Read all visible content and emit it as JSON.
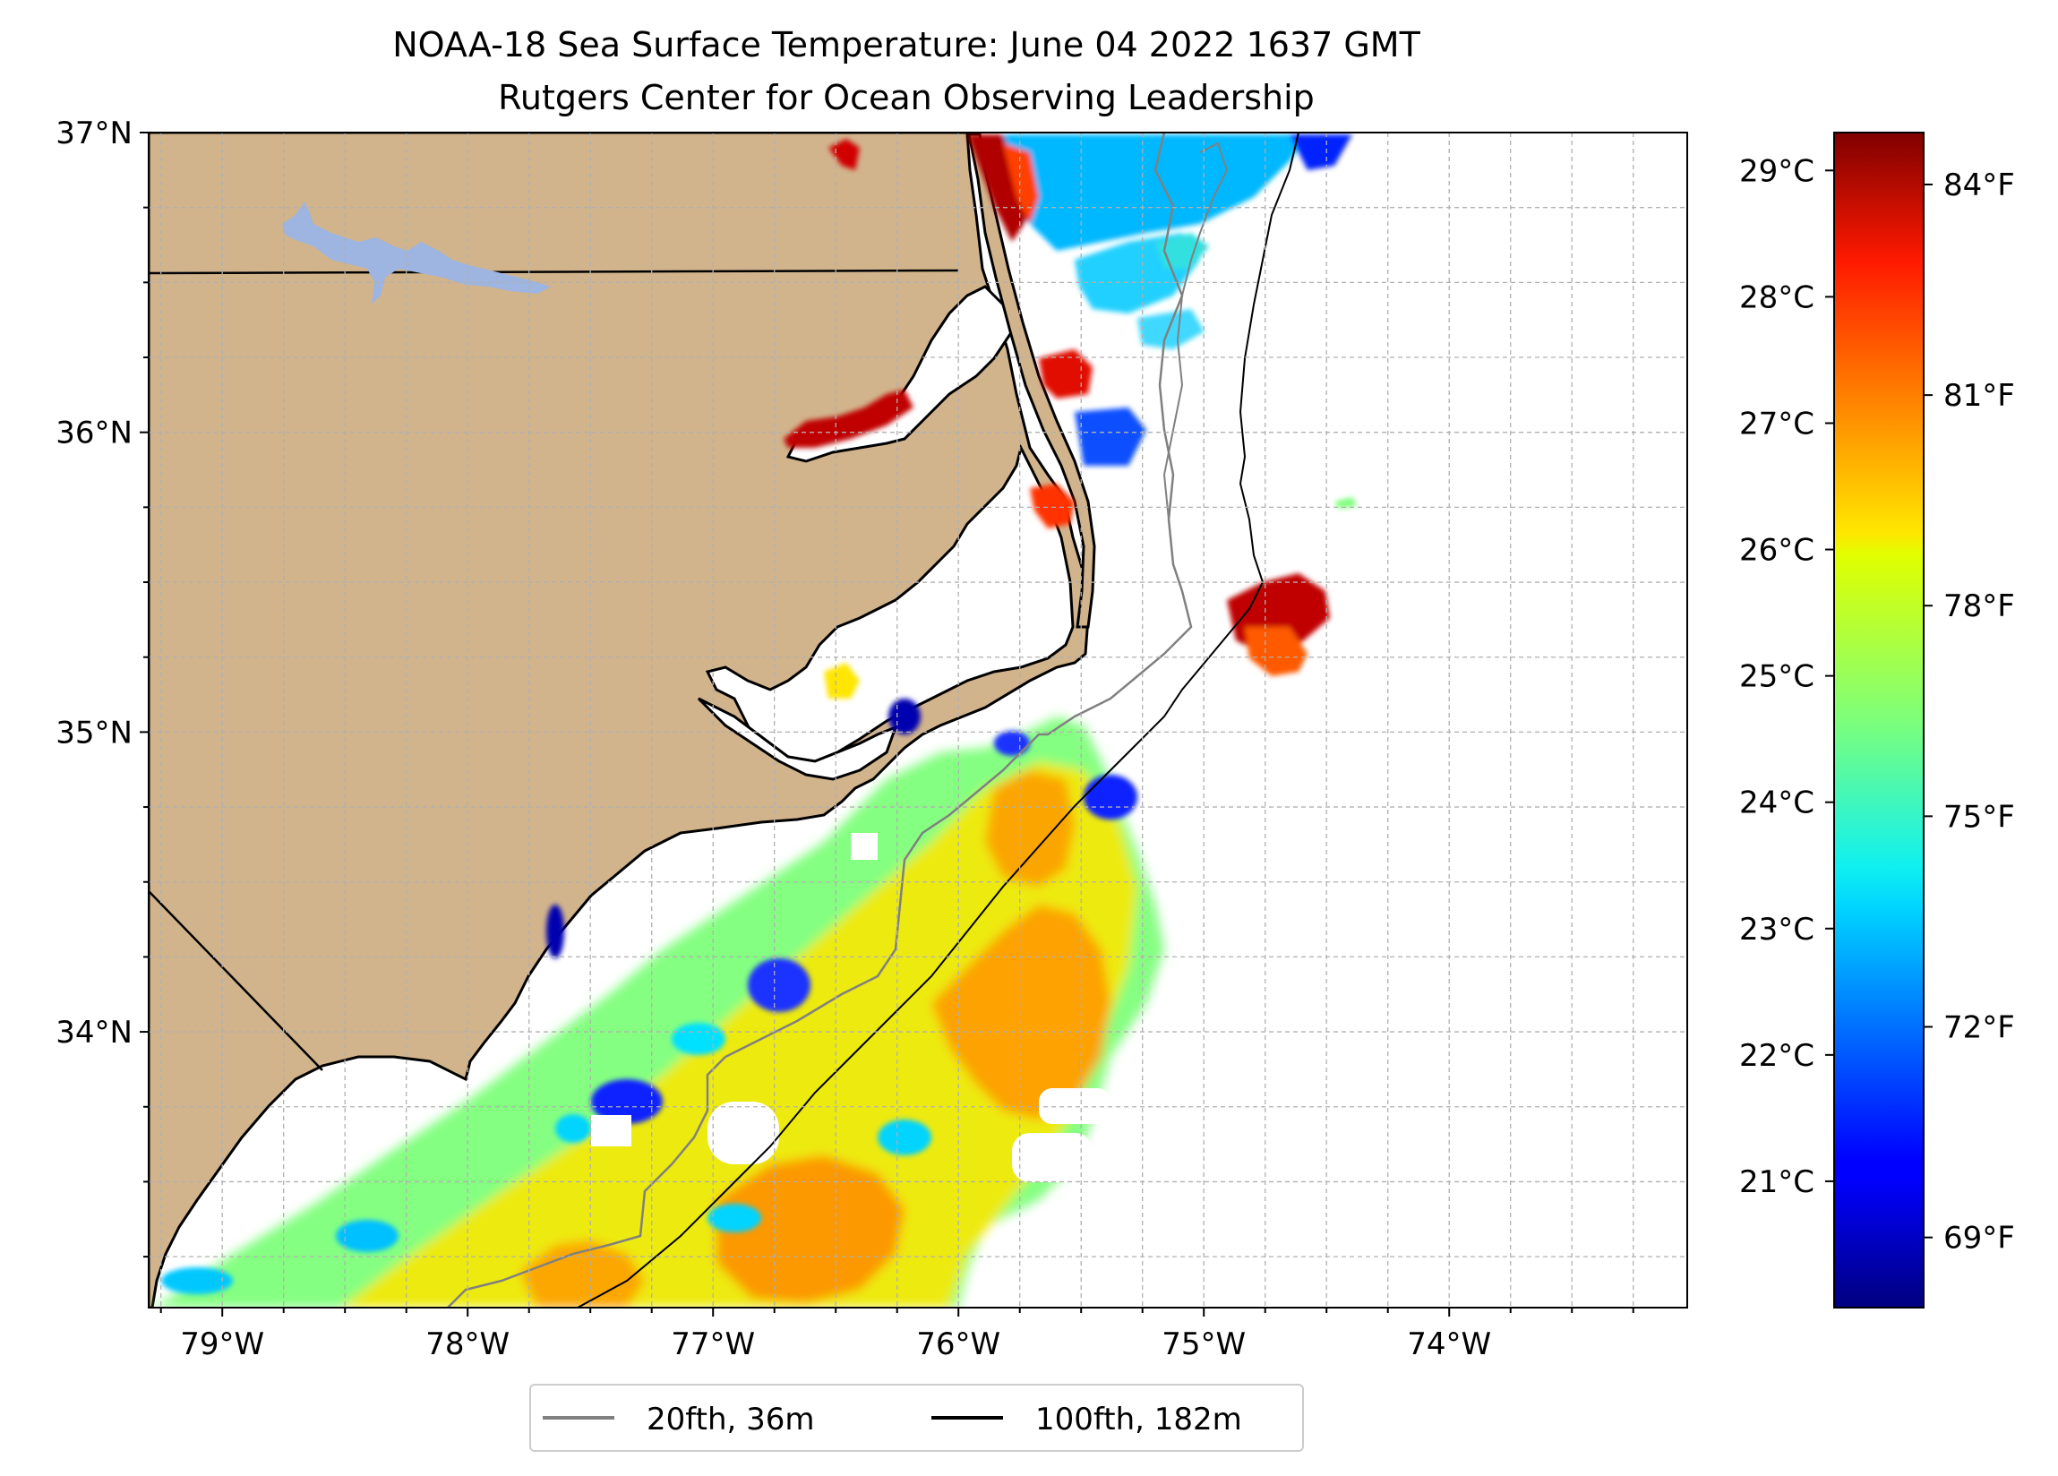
{
  "title": {
    "line1": "NOAA-18 Sea Surface Temperature: June 04 2022 1637 GMT",
    "line2": "Rutgers Center for Ocean Observing Leadership"
  },
  "axes": {
    "lon_ticks": [
      {
        "lon": -79,
        "label": "79°W"
      },
      {
        "lon": -78,
        "label": "78°W"
      },
      {
        "lon": -77,
        "label": "77°W"
      },
      {
        "lon": -76,
        "label": "76°W"
      },
      {
        "lon": -75,
        "label": "75°W"
      },
      {
        "lon": -74,
        "label": "74°W"
      }
    ],
    "lat_ticks": [
      {
        "lat": 37,
        "label": "37°N"
      },
      {
        "lat": 36,
        "label": "36°N"
      },
      {
        "lat": 35,
        "label": "35°N"
      },
      {
        "lat": 34,
        "label": "34°N"
      }
    ],
    "lon_range": [
      -79.3,
      -73.03
    ],
    "lat_range": [
      33.08,
      37.0
    ]
  },
  "legend": {
    "placement": "bottom-center",
    "items": [
      {
        "label": "20fth, 36m",
        "color": "#808080"
      },
      {
        "label": "100fth, 182m",
        "color": "#000000"
      }
    ]
  },
  "colorbar": {
    "colormap": "jet",
    "celsius_ticks": [
      {
        "value": 21,
        "label": "21°C"
      },
      {
        "value": 22,
        "label": "22°C"
      },
      {
        "value": 23,
        "label": "23°C"
      },
      {
        "value": 24,
        "label": "24°C"
      },
      {
        "value": 25,
        "label": "25°C"
      },
      {
        "value": 26,
        "label": "26°C"
      },
      {
        "value": 27,
        "label": "27°C"
      },
      {
        "value": 28,
        "label": "28°C"
      },
      {
        "value": 29,
        "label": "29°C"
      }
    ],
    "fahrenheit_ticks": [
      {
        "value": 69,
        "label": "69°F"
      },
      {
        "value": 72,
        "label": "72°F"
      },
      {
        "value": 75,
        "label": "75°F"
      },
      {
        "value": 78,
        "label": "78°F"
      },
      {
        "value": 81,
        "label": "81°F"
      },
      {
        "value": 84,
        "label": "84°F"
      }
    ],
    "range_c": [
      20.0,
      29.3
    ]
  },
  "colors": {
    "land": "#d2b48c",
    "lake": "#9db5e0",
    "grid": "#b0b0b0"
  }
}
